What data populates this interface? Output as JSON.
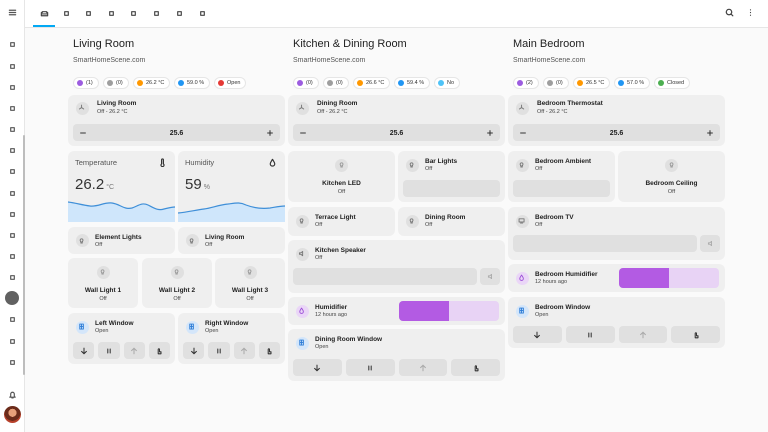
{
  "rooms": [
    {
      "title": "Living Room",
      "subtitle": "SmartHomeScene.com",
      "badges": [
        "(1)",
        "(0)",
        "26.2 °C",
        "59.0 %",
        "Open"
      ],
      "thermostat": {
        "name": "Living Room",
        "state": "Off - 26.2 °C",
        "setpoint": "25.6"
      },
      "sensors": [
        {
          "name": "Temperature",
          "value": "26.2",
          "unit": "°C"
        },
        {
          "name": "Humidity",
          "value": "59",
          "unit": "%"
        }
      ],
      "tiles": [
        {
          "name": "Element Lights",
          "state": "Off"
        },
        {
          "name": "Living Room",
          "state": "Off"
        },
        {
          "name": "Wall Light 1",
          "state": "Off"
        },
        {
          "name": "Wall Light 2",
          "state": "Off"
        },
        {
          "name": "Wall Light 3",
          "state": "Off"
        },
        {
          "name": "Left Window",
          "state": "Open"
        },
        {
          "name": "Right Window",
          "state": "Open"
        }
      ]
    },
    {
      "title": "Kitchen & Dining Room",
      "subtitle": "SmartHomeScene.com",
      "badges": [
        "(0)",
        "(0)",
        "26.6 °C",
        "59.4 %",
        "No"
      ],
      "thermostat": {
        "name": "Dining Room",
        "state": "Off - 26.2 °C",
        "setpoint": "25.6"
      },
      "tiles": [
        {
          "name": "Kitchen LED",
          "state": "Off"
        },
        {
          "name": "Bar Lights",
          "state": "Off"
        },
        {
          "name": "Terrace Light",
          "state": "Off"
        },
        {
          "name": "Dining Room",
          "state": "Off"
        },
        {
          "name": "Kitchen Speaker",
          "state": "Off"
        },
        {
          "name": "Humidifier",
          "state": "12 hours ago"
        },
        {
          "name": "Dining Room Window",
          "state": "Open"
        }
      ]
    },
    {
      "title": "Main Bedroom",
      "subtitle": "SmartHomeScene.com",
      "badges": [
        "(2)",
        "(0)",
        "26.5 °C",
        "57.0 %",
        "Closed"
      ],
      "thermostat": {
        "name": "Bedroom Thermostat",
        "state": "Off - 26.2 °C",
        "setpoint": "25.6"
      },
      "tiles": [
        {
          "name": "Bedroom Ambient",
          "state": "Off"
        },
        {
          "name": "Bedroom Ceiling",
          "state": "Off"
        },
        {
          "name": "Bedroom TV",
          "state": "Off"
        },
        {
          "name": "Bedroom Humidifier",
          "state": "12 hours ago"
        },
        {
          "name": "Bedroom Window",
          "state": "Open"
        }
      ]
    }
  ]
}
